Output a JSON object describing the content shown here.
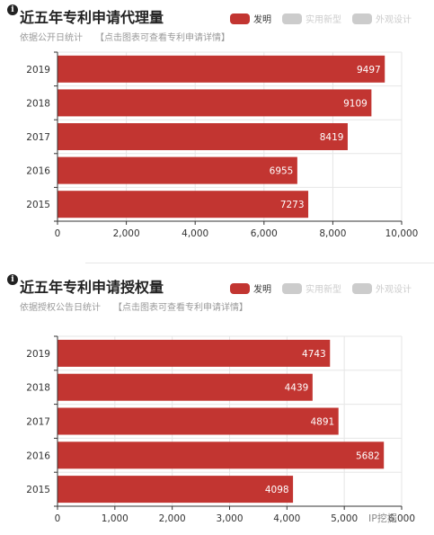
{
  "info_icon": "info-icon",
  "colors": {
    "bar": "#c23531",
    "grid": "#e6e6e6",
    "axis": "#333333",
    "legend_off": "#cccccc",
    "label_in_bar": "#ffffff"
  },
  "legend": [
    {
      "label": "发明",
      "active": true
    },
    {
      "label": "实用新型",
      "active": false
    },
    {
      "label": "外观设计",
      "active": false
    }
  ],
  "panels": [
    {
      "title": "近五年专利申请代理量",
      "subtitle": "依据公开日统计",
      "link": "【点击图表可查看专利申请详情】"
    },
    {
      "title": "近五年专利申请授权量",
      "subtitle": "依据授权公告日统计",
      "link": "【点击图表可查看专利申请详情】"
    }
  ],
  "watermark": "IP挖掘",
  "chart_data": [
    {
      "type": "bar",
      "orientation": "horizontal",
      "categories": [
        "2019",
        "2018",
        "2017",
        "2016",
        "2015"
      ],
      "series": [
        {
          "name": "发明",
          "values": [
            9497,
            9109,
            8419,
            6955,
            7273
          ]
        }
      ],
      "xlim": [
        0,
        10000
      ],
      "xticks": [
        0,
        2000,
        4000,
        6000,
        8000,
        10000
      ],
      "xtick_labels": [
        "0",
        "2,000",
        "4,000",
        "6,000",
        "8,000",
        "10,000"
      ],
      "grid": true
    },
    {
      "type": "bar",
      "orientation": "horizontal",
      "categories": [
        "2019",
        "2018",
        "2017",
        "2016",
        "2015"
      ],
      "series": [
        {
          "name": "发明",
          "values": [
            4743,
            4439,
            4891,
            5682,
            4098
          ]
        }
      ],
      "xlim": [
        0,
        6000
      ],
      "xticks": [
        0,
        1000,
        2000,
        3000,
        4000,
        5000,
        6000
      ],
      "xtick_labels": [
        "0",
        "1,000",
        "2,000",
        "3,000",
        "4,000",
        "5,000",
        "6,000"
      ],
      "grid": true
    }
  ]
}
